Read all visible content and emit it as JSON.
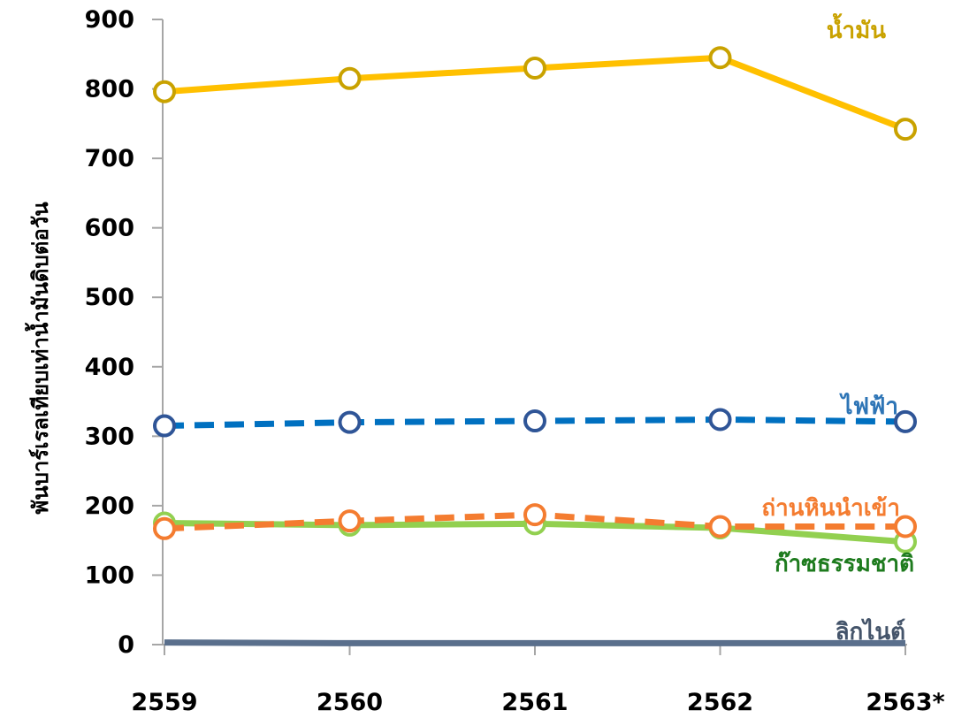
{
  "chart_data": {
    "type": "line",
    "title": "",
    "xlabel": "",
    "ylabel": "พันบาร์เรลเทียบเท่าน้ำมันดิบต่อวัน",
    "categories": [
      "2559",
      "2560",
      "2561",
      "2562",
      "2563*"
    ],
    "ylim": [
      0,
      900
    ],
    "yticks": [
      0,
      100,
      200,
      300,
      400,
      500,
      600,
      700,
      800,
      900
    ],
    "grid": false,
    "legend": "none (series labeled directly on lines)",
    "series": [
      {
        "name": "น้ำมัน",
        "values": [
          796,
          815,
          830,
          845,
          742
        ],
        "color": "#FFC000",
        "marker_color": "#C9A200",
        "label_color": "#C9A200",
        "dashed": false,
        "markers": true
      },
      {
        "name": "ไฟฟ้า",
        "values": [
          315,
          320,
          322,
          324,
          321
        ],
        "color": "#0070C0",
        "marker_color": "#2F5597",
        "label_color": "#2E75B6",
        "dashed": true,
        "markers": true
      },
      {
        "name": "ถ่านหินนำเข้า",
        "values": [
          167,
          178,
          187,
          170,
          170
        ],
        "color": "#F47C30",
        "marker_color": "#F47C30",
        "label_color": "#F47C30",
        "dashed": true,
        "markers": true
      },
      {
        "name": "ก๊าซธรรมชาติ",
        "values": [
          175,
          172,
          174,
          168,
          148
        ],
        "color": "#92D050",
        "marker_color": "#92D050",
        "label_color": "#1E7B1E",
        "dashed": false,
        "markers": true
      },
      {
        "name": "ลิกไนต์",
        "values": [
          3,
          2,
          2,
          2,
          2
        ],
        "color": "#5A6F8C",
        "marker_color": "#5A6F8C",
        "label_color": "#44546A",
        "dashed": false,
        "markers": false
      }
    ]
  }
}
